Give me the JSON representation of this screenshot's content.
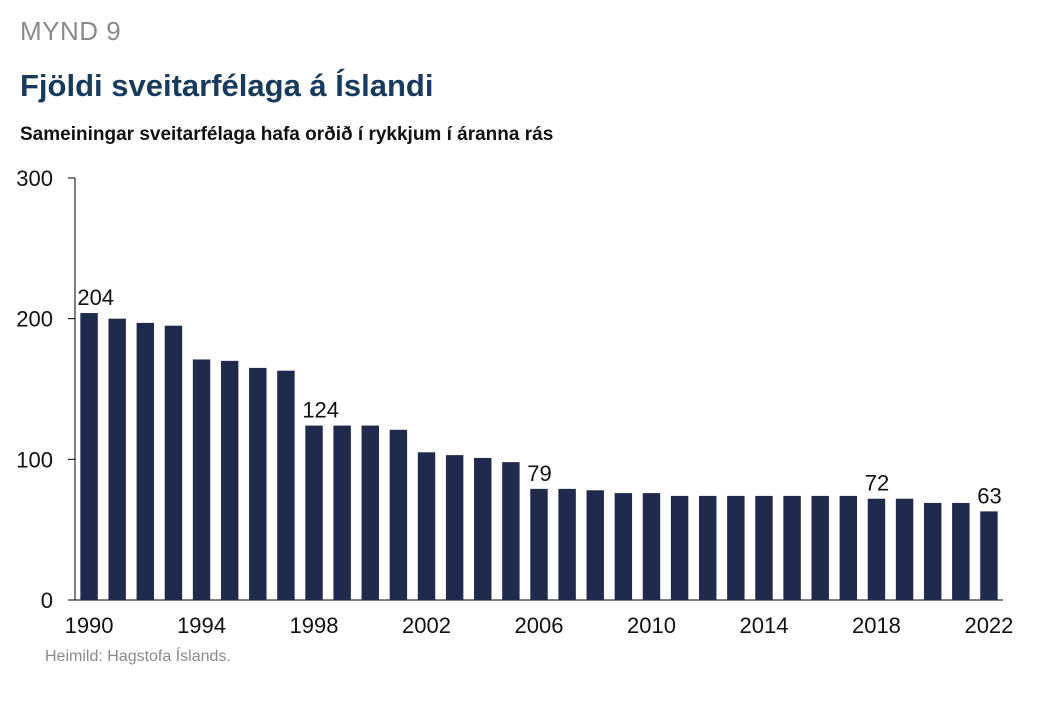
{
  "figure_label": "MYND 9",
  "title": "Fjöldi sveitarfélaga á Íslandi",
  "subtitle": "Sameiningar sveitarfélaga hafa orðið í rykkjum í áranna rás",
  "source": "Heimild: Hagstofa Íslands.",
  "colors": {
    "bar": "#1f2a4d",
    "axis": "#000000",
    "title": "#173a5e"
  },
  "chart_data": {
    "type": "bar",
    "categories": [
      "1990",
      "1991",
      "1992",
      "1993",
      "1994",
      "1995",
      "1996",
      "1997",
      "1998",
      "1999",
      "2000",
      "2001",
      "2002",
      "2003",
      "2004",
      "2005",
      "2006",
      "2007",
      "2008",
      "2009",
      "2010",
      "2011",
      "2012",
      "2013",
      "2014",
      "2015",
      "2016",
      "2017",
      "2018",
      "2019",
      "2020",
      "2021",
      "2022"
    ],
    "values": [
      204,
      200,
      197,
      195,
      171,
      170,
      165,
      163,
      124,
      124,
      124,
      121,
      105,
      103,
      101,
      98,
      79,
      79,
      78,
      76,
      76,
      74,
      74,
      74,
      74,
      74,
      74,
      74,
      72,
      72,
      69,
      69,
      63
    ],
    "x_tick_labels": [
      "1990",
      "1994",
      "1998",
      "2002",
      "2006",
      "2010",
      "2014",
      "2018",
      "2022"
    ],
    "y_ticks": [
      0,
      100,
      200,
      300
    ],
    "ylim": [
      0,
      300
    ],
    "data_labels": [
      {
        "category": "1990",
        "text": "204"
      },
      {
        "category": "1998",
        "text": "124"
      },
      {
        "category": "2006",
        "text": "79"
      },
      {
        "category": "2018",
        "text": "72"
      },
      {
        "category": "2022",
        "text": "63"
      }
    ],
    "xlabel": "",
    "ylabel": "",
    "grid": false,
    "legend": "none"
  }
}
